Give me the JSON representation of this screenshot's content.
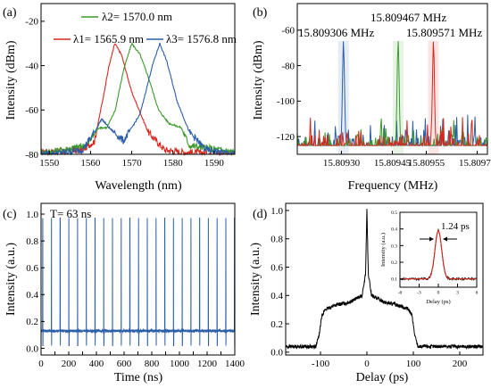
{
  "chart_data": [
    {
      "panel": "(a)",
      "type": "line",
      "xlabel": "Wavelength (nm)",
      "ylabel": "Intensity (dBm)",
      "xlim": [
        1548,
        1595
      ],
      "ylim": [
        -80,
        -12
      ],
      "xticks": [
        1550,
        1560,
        1570,
        1580,
        1590
      ],
      "yticks": [
        -80,
        -60,
        -40,
        -20
      ],
      "series": [
        {
          "name": "λ1= 1565.9 nm",
          "color": "#d6281f",
          "x": [
            1550,
            1558,
            1561,
            1563,
            1564.5,
            1565.9,
            1567.5,
            1570,
            1574,
            1578,
            1582,
            1595
          ],
          "y": [
            -79,
            -78,
            -74,
            -55,
            -40,
            -30,
            -35,
            -52,
            -70,
            -78,
            -79,
            -80
          ]
        },
        {
          "name": "λ2= 1570.0 nm",
          "color": "#3c9a2c",
          "x": [
            1550,
            1559,
            1562,
            1564,
            1566,
            1568,
            1570,
            1572,
            1574,
            1576.5,
            1579,
            1582,
            1584,
            1595
          ],
          "y": [
            -79,
            -76,
            -68,
            -68,
            -60,
            -42,
            -30,
            -35,
            -45,
            -60,
            -66,
            -68,
            -76,
            -79
          ]
        },
        {
          "name": "λ3= 1576.8 nm",
          "color": "#2c5fa8",
          "x": [
            1550,
            1558,
            1561,
            1562.7,
            1564.5,
            1568,
            1572,
            1575,
            1576.8,
            1578.5,
            1581,
            1584,
            1588,
            1595
          ],
          "y": [
            -80,
            -78,
            -70,
            -64,
            -68,
            -74,
            -62,
            -40,
            -30,
            -38,
            -56,
            -70,
            -78,
            -80
          ]
        }
      ],
      "labels": [
        "λ1= 1565.9 nm",
        "λ2= 1570.0 nm",
        "λ3= 1576.8 nm"
      ]
    },
    {
      "panel": "(b)",
      "type": "line",
      "xlabel": "Frequency (MHz)",
      "ylabel": "Intensity (dBm)",
      "xlim": [
        15.80917,
        15.80973
      ],
      "ylim": [
        -130,
        -45
      ],
      "xtick_labels": [
        "15.80930",
        "15.80945",
        "15.80955",
        "15.80970"
      ],
      "yticks": [
        -120,
        -100,
        -80,
        -60
      ],
      "series": [
        {
          "name": "15.809306 MHz",
          "color": "#2c5fa8",
          "peak_x": 15.809306,
          "peak_y": -66,
          "floor": -125
        },
        {
          "name": "15.809467 MHz",
          "color": "#3c9a2c",
          "peak_x": 15.809467,
          "peak_y": -66,
          "floor": -125
        },
        {
          "name": "15.809571 MHz",
          "color": "#d6281f",
          "peak_x": 15.809571,
          "peak_y": -66,
          "floor": -125
        }
      ],
      "labels": [
        "15.809306 MHz",
        "15.809467 MHz",
        "15.809571 MHz"
      ]
    },
    {
      "panel": "(c)",
      "type": "line",
      "xlabel": "Time (ns)",
      "ylabel": "Intensity (a.u.)",
      "xlim": [
        0,
        1400
      ],
      "ylim": [
        -0.05,
        1.08
      ],
      "xticks": [
        0,
        100,
        200,
        300,
        400,
        500,
        600,
        700,
        800,
        900,
        1000,
        1100,
        1200,
        1300,
        1400
      ],
      "yticks": [
        0.0,
        0.2,
        0.4,
        0.6,
        0.8,
        1.0
      ],
      "annotation": "T= 63 ns",
      "series": [
        {
          "name": "pulse train",
          "color": "#2c5fa8",
          "period_ns": 63,
          "first_pulse_ns": 12,
          "baseline": 0.13,
          "peak": 0.97,
          "dip": 0.02
        }
      ]
    },
    {
      "panel": "(d)",
      "type": "line",
      "xlabel": "Delay (ps)",
      "ylabel": "Intensity (a.u.)",
      "xlim": [
        -175,
        250
      ],
      "ylim": [
        -0.02,
        1.05
      ],
      "xticks": [
        -100,
        0,
        100,
        200
      ],
      "yticks": [
        0.0,
        0.2,
        0.4,
        0.6,
        0.8,
        1.0
      ],
      "series": [
        {
          "name": "autocorrelation",
          "color": "#000000",
          "x": [
            -175,
            -110,
            -103,
            -97,
            -90,
            -70,
            -40,
            -10,
            -3,
            0,
            3,
            10,
            40,
            70,
            90,
            97,
            103,
            110,
            250
          ],
          "y": [
            0.04,
            0.04,
            0.12,
            0.26,
            0.3,
            0.33,
            0.35,
            0.4,
            0.55,
            1.0,
            0.55,
            0.4,
            0.35,
            0.33,
            0.3,
            0.26,
            0.12,
            0.04,
            0.04
          ]
        }
      ],
      "inset": {
        "xlabel": "Delay (ps)",
        "ylabel": "Intensity (a.u.)",
        "xlim": [
          -6,
          6
        ],
        "ylim": [
          0.05,
          0.5
        ],
        "xticks": [
          -6,
          -3,
          0,
          3,
          6
        ],
        "yticks": [
          0.1,
          0.2,
          0.3,
          0.4,
          0.5
        ],
        "annotation": "1.24 ps",
        "series": [
          {
            "name": "measured",
            "color": "#000000",
            "center": 0,
            "fwhm_ps": 1.24,
            "peak": 0.39,
            "base": 0.1
          },
          {
            "name": "fit",
            "color": "#d6281f",
            "center": 0,
            "fwhm_ps": 1.24,
            "peak": 0.39,
            "base": 0.1
          }
        ]
      }
    }
  ]
}
